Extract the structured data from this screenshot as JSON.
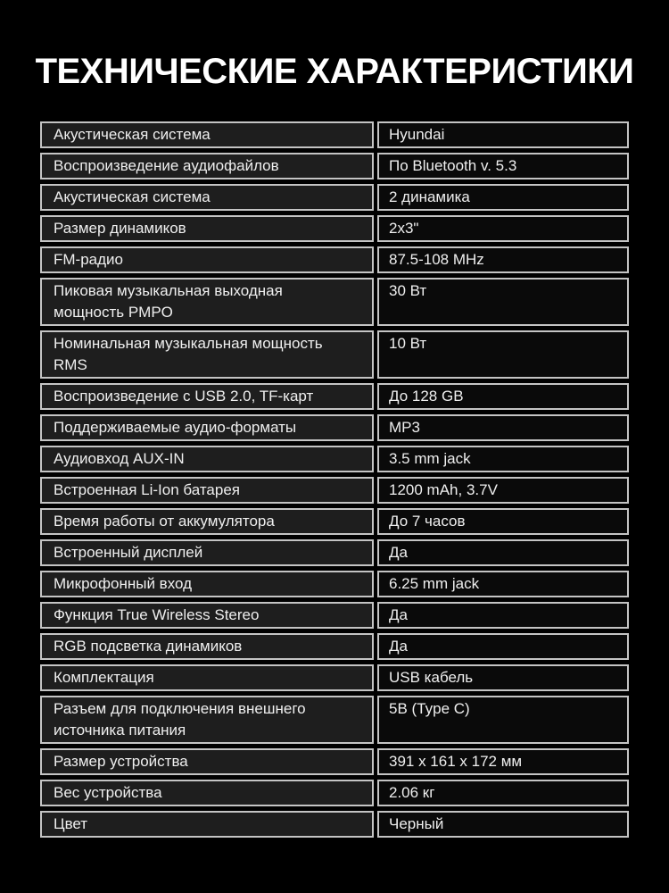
{
  "title": "ТЕХНИЧЕСКИЕ ХАРАКТЕРИСТИКИ",
  "colors": {
    "background": "#000000",
    "border": "#c4c4c4",
    "label_cell_bg": "#1e1e1e",
    "value_cell_bg": "#0a0a0a",
    "text": "#efefef",
    "title_text": "#ffffff"
  },
  "table": {
    "rows": [
      {
        "label": "Акустическая система",
        "value": "Hyundai"
      },
      {
        "label": "Воспроизведение аудиофайлов",
        "value": "По Bluetooth v. 5.3"
      },
      {
        "label": "Акустическая система",
        "value": "2 динамика"
      },
      {
        "label": "Размер динамиков",
        "value": "2x3\""
      },
      {
        "label": "FM-радио",
        "value": "87.5-108 MHz"
      },
      {
        "label": "Пиковая музыкальная выходная мощность PMPO",
        "value": "30 Вт"
      },
      {
        "label": "Номинальная музыкальная мощность RMS",
        "value": "10 Вт"
      },
      {
        "label": "Воспроизведение с USB 2.0, TF-карт",
        "value": "До 128 GB"
      },
      {
        "label": "Поддерживаемые аудио-форматы",
        "value": "MP3"
      },
      {
        "label": "Аудиовход AUX-IN",
        "value": "3.5 mm jack"
      },
      {
        "label": "Встроенная Li-Ion батарея",
        "value": "1200 mAh, 3.7V"
      },
      {
        "label": "Время работы от аккумулятора",
        "value": "До 7 часов"
      },
      {
        "label": "Встроенный дисплей",
        "value": "Да"
      },
      {
        "label": "Микрофонный вход",
        "value": "6.25 mm jack"
      },
      {
        "label": "Функция True Wireless Stereo",
        "value": "Да"
      },
      {
        "label": "RGB подсветка динамиков",
        "value": "Да"
      },
      {
        "label": "Комплектация",
        "value": "USB кабель"
      },
      {
        "label": "Разъем для подключения внешнего источника питания",
        "value": "5В (Type C)"
      },
      {
        "label": "Размер устройства",
        "value": "391 х 161 х 172 мм"
      },
      {
        "label": "Вес устройства",
        "value": "2.06 кг"
      },
      {
        "label": "Цвет",
        "value": "Черный"
      }
    ]
  }
}
